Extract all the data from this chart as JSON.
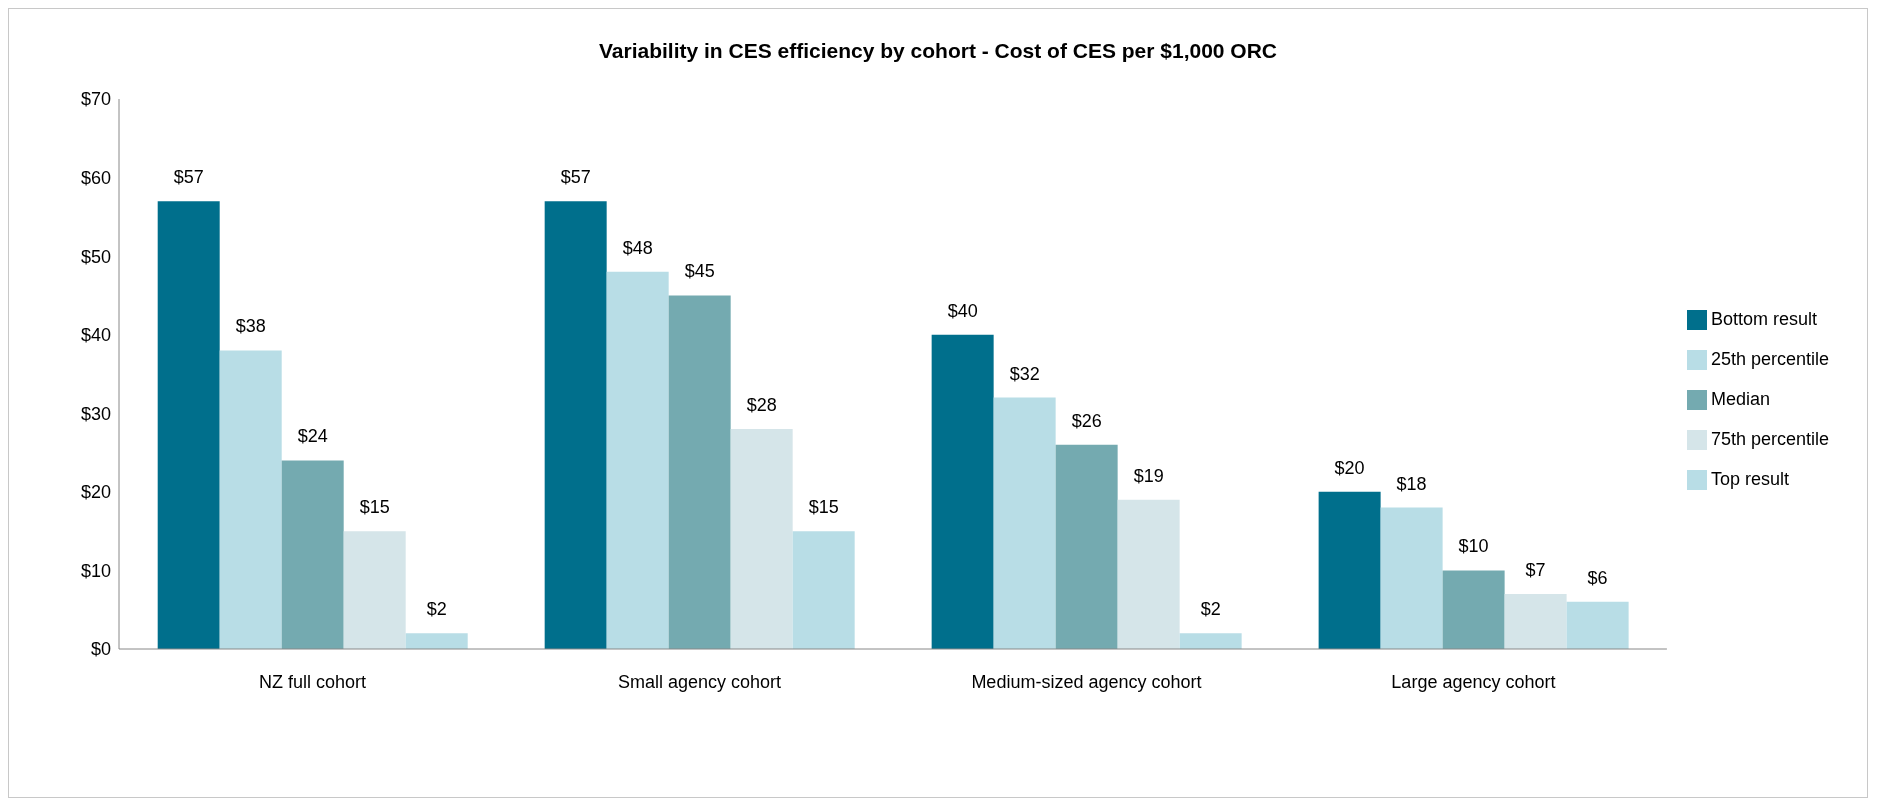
{
  "chart_data": {
    "type": "bar",
    "title": "Variability in CES efficiency by cohort  - Cost of CES per $1,000 ORC",
    "categories": [
      "NZ full cohort",
      "Small agency  cohort",
      "Medium-sized agency  cohort",
      "Large agency cohort"
    ],
    "series": [
      {
        "name": "Bottom result",
        "color": "#006f8c",
        "values": [
          57,
          57,
          40,
          20
        ],
        "value_labels": [
          "$57",
          "$57",
          "$40",
          "$20"
        ]
      },
      {
        "name": "25th percentile",
        "color": "#b8dde6",
        "values": [
          38,
          48,
          32,
          18
        ],
        "value_labels": [
          "$38",
          "$48",
          "$32",
          "$18"
        ]
      },
      {
        "name": "Median",
        "color": "#74aab0",
        "values": [
          24,
          45,
          26,
          10
        ],
        "value_labels": [
          "$24",
          "$45",
          "$26",
          "$10"
        ]
      },
      {
        "name": "75th percentile",
        "color": "#d5e5e9",
        "values": [
          15,
          28,
          19,
          7
        ],
        "value_labels": [
          "$15",
          "$28",
          "$19",
          "$7"
        ]
      },
      {
        "name": "Top result",
        "color": "#b8dde6",
        "values": [
          2,
          15,
          2,
          6
        ],
        "value_labels": [
          "$2",
          "$15",
          "$2",
          "$6"
        ]
      }
    ],
    "ylim": [
      0,
      70
    ],
    "yticks": [
      {
        "value": 0,
        "label": "$0"
      },
      {
        "value": 10,
        "label": "$10"
      },
      {
        "value": 20,
        "label": "$20"
      },
      {
        "value": 30,
        "label": "$30"
      },
      {
        "value": 40,
        "label": "$40"
      },
      {
        "value": 50,
        "label": "$50"
      },
      {
        "value": 60,
        "label": "$60"
      },
      {
        "value": 70,
        "label": "$70"
      }
    ],
    "grid": false,
    "legend": "right"
  }
}
